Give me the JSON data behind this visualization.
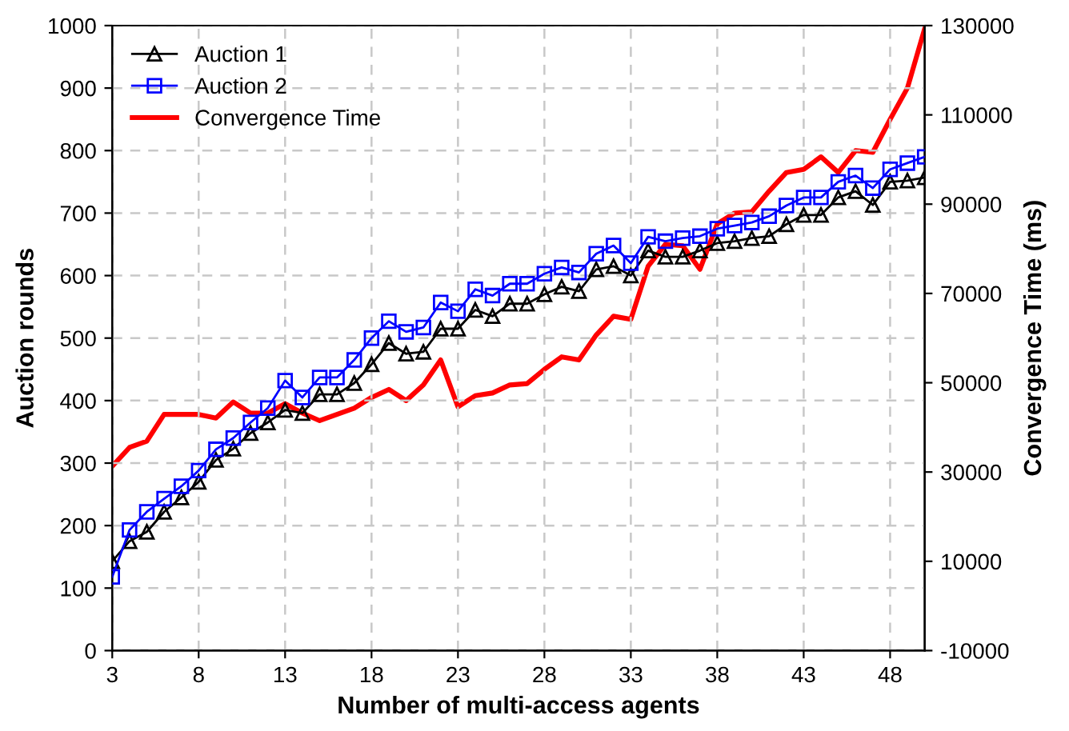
{
  "chart_data": {
    "type": "line",
    "xlabel": "Number of multi-access agents",
    "ylabel": "Auction rounds",
    "y2label": "Convergence Time (ms)",
    "x": [
      3,
      4,
      5,
      6,
      7,
      8,
      9,
      10,
      11,
      12,
      13,
      14,
      15,
      16,
      17,
      18,
      19,
      20,
      21,
      22,
      23,
      24,
      25,
      26,
      27,
      28,
      29,
      30,
      31,
      32,
      33,
      34,
      35,
      36,
      37,
      38,
      39,
      40,
      41,
      42,
      43,
      44,
      45,
      46,
      47,
      48,
      49,
      50
    ],
    "series": [
      {
        "name": "Auction 1",
        "color": "#000000",
        "marker": "triangle",
        "values": [
          143,
          175,
          190,
          222,
          245,
          270,
          305,
          323,
          348,
          365,
          385,
          380,
          410,
          410,
          428,
          458,
          492,
          475,
          478,
          515,
          515,
          545,
          535,
          555,
          555,
          570,
          582,
          575,
          610,
          615,
          600,
          640,
          630,
          630,
          640,
          652,
          655,
          660,
          663,
          682,
          697,
          697,
          725,
          735,
          713,
          750,
          752,
          757
        ]
      },
      {
        "name": "Auction 2",
        "color": "#0000ff",
        "marker": "square",
        "values": [
          118,
          193,
          222,
          243,
          263,
          288,
          322,
          340,
          365,
          388,
          432,
          405,
          437,
          437,
          465,
          500,
          527,
          510,
          517,
          557,
          543,
          578,
          568,
          587,
          587,
          603,
          613,
          605,
          635,
          648,
          620,
          662,
          655,
          660,
          663,
          675,
          680,
          685,
          695,
          712,
          725,
          725,
          750,
          760,
          740,
          770,
          780,
          790
        ]
      },
      {
        "name": "Convergence Time",
        "color": "#ff0000",
        "marker": "none",
        "axis": "y2",
        "values": [
          31300,
          35500,
          36900,
          42900,
          42900,
          42900,
          42100,
          45700,
          43200,
          43200,
          45300,
          43200,
          41500,
          42900,
          44300,
          46700,
          48500,
          46000,
          49500,
          55100,
          44600,
          47100,
          47700,
          49500,
          49800,
          53000,
          55800,
          55100,
          60700,
          64900,
          64200,
          76100,
          81000,
          80700,
          75400,
          85600,
          88000,
          88300,
          92900,
          97100,
          97800,
          100600,
          97100,
          102000,
          101600,
          109000,
          116000,
          129300
        ]
      }
    ],
    "xlim": [
      3,
      50
    ],
    "xticks": [
      3,
      8,
      13,
      18,
      23,
      28,
      33,
      38,
      43,
      48
    ],
    "ylim": [
      0,
      1000
    ],
    "yticks": [
      0,
      100,
      200,
      300,
      400,
      500,
      600,
      700,
      800,
      900,
      1000
    ],
    "y2lim": [
      -10000,
      130000
    ],
    "y2ticks": [
      -10000,
      10000,
      30000,
      50000,
      70000,
      90000,
      110000,
      130000
    ],
    "grid": true,
    "legend": "top left",
    "line_style": "solid"
  }
}
